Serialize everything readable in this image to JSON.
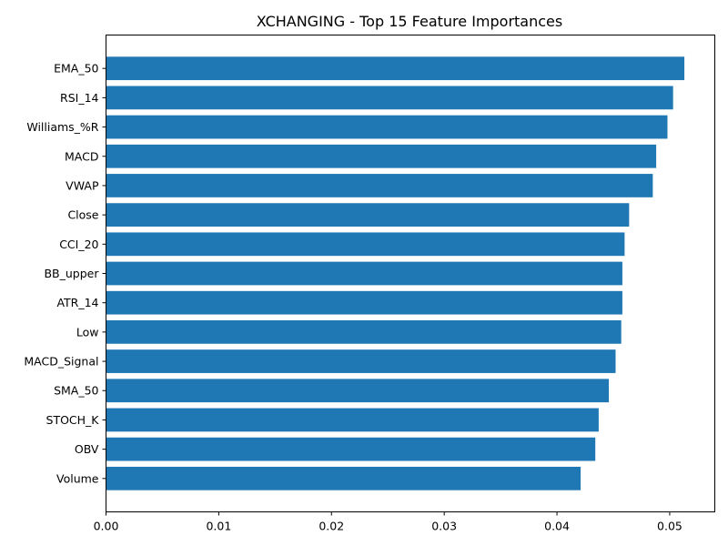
{
  "chart_data": {
    "type": "bar",
    "orientation": "horizontal",
    "title": "XCHANGING - Top 15 Feature Importances",
    "xlabel": "",
    "ylabel": "",
    "categories": [
      "EMA_50",
      "RSI_14",
      "Williams_%R",
      "MACD",
      "VWAP",
      "Close",
      "CCI_20",
      "BB_upper",
      "ATR_14",
      "Low",
      "MACD_Signal",
      "SMA_50",
      "STOCH_K",
      "OBV",
      "Volume"
    ],
    "values": [
      0.0513,
      0.0503,
      0.0498,
      0.0488,
      0.0485,
      0.0464,
      0.046,
      0.0458,
      0.0458,
      0.0457,
      0.0452,
      0.0446,
      0.0437,
      0.0434,
      0.0421
    ],
    "xlim": [
      0,
      0.054
    ],
    "xticks": [
      "0.00",
      "0.01",
      "0.02",
      "0.03",
      "0.04",
      "0.05"
    ],
    "grid": false,
    "bar_color": "#1f77b4"
  }
}
